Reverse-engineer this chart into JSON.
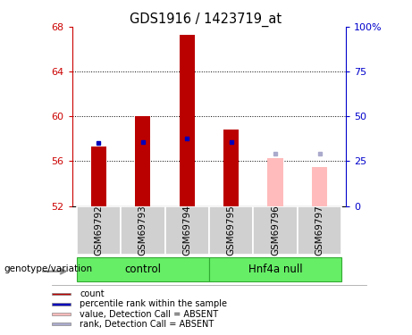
{
  "title": "GDS1916 / 1423719_at",
  "samples": [
    "GSM69792",
    "GSM69793",
    "GSM69794",
    "GSM69795",
    "GSM69796",
    "GSM69797"
  ],
  "bar_values": [
    57.35,
    60.05,
    67.25,
    58.85,
    56.25,
    55.5
  ],
  "bar_base": 52.0,
  "rank_values": [
    57.65,
    57.75,
    58.05,
    57.75,
    56.65,
    56.65
  ],
  "absent_flags": [
    false,
    false,
    false,
    false,
    true,
    true
  ],
  "ylim": [
    52,
    68
  ],
  "yticks": [
    52,
    56,
    60,
    64,
    68
  ],
  "y2lim": [
    0,
    100
  ],
  "y2ticks": [
    0,
    25,
    50,
    75,
    100
  ],
  "bar_color_present": "#bb0000",
  "bar_color_absent": "#ffbbbb",
  "rank_color_present": "#0000bb",
  "rank_color_absent": "#aaaacc",
  "control_label": "control",
  "hnf4a_label": "Hnf4a null",
  "genotype_label": "genotype/variation",
  "legend_items": [
    {
      "label": "count",
      "color": "#bb0000"
    },
    {
      "label": "percentile rank within the sample",
      "color": "#0000bb"
    },
    {
      "label": "value, Detection Call = ABSENT",
      "color": "#ffbbbb"
    },
    {
      "label": "rank, Detection Call = ABSENT",
      "color": "#aaaacc"
    }
  ],
  "bar_width": 0.35
}
